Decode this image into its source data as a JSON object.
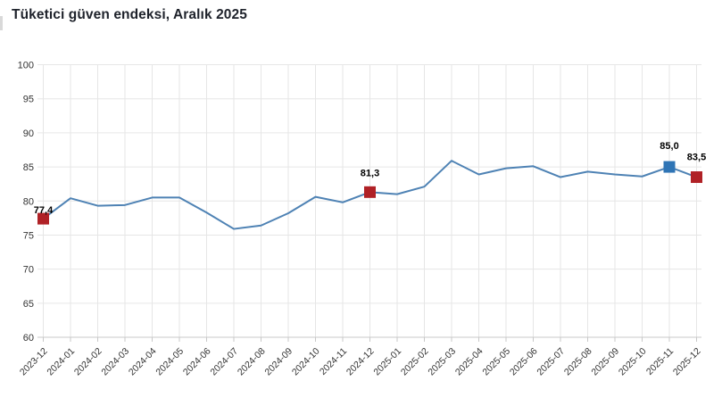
{
  "page": {
    "title": "Tüketici güven endeksi, Aralık 2025"
  },
  "colors": {
    "line": "#4e82b4",
    "marker_red": "#b02126",
    "marker_blue": "#2e74b5",
    "gridline": "#e6e6e6",
    "axis_line": "#c8c8c8",
    "tick_label": "#333333",
    "data_label": "#000000",
    "title_text": "#1e222b",
    "background": "#ffffff"
  },
  "chart_data": {
    "type": "line",
    "title": "Tüketici güven endeksi, Aralık 2025",
    "xlabel": "",
    "ylabel": "",
    "ylim": [
      60,
      100
    ],
    "y_ticks": [
      60,
      65,
      70,
      75,
      80,
      85,
      90,
      95,
      100
    ],
    "grid": true,
    "legend": "none",
    "categories": [
      "2023-12",
      "2024-01",
      "2024-02",
      "2024-03",
      "2024-04",
      "2024-05",
      "2024-06",
      "2024-07",
      "2024-08",
      "2024-09",
      "2024-10",
      "2024-11",
      "2024-12",
      "2025-01",
      "2025-02",
      "2025-03",
      "2025-04",
      "2025-05",
      "2025-06",
      "2025-07",
      "2025-08",
      "2025-09",
      "2025-10",
      "2025-11",
      "2025-12"
    ],
    "values": [
      77.4,
      80.4,
      79.3,
      79.4,
      80.5,
      80.5,
      78.3,
      75.9,
      76.4,
      78.2,
      80.6,
      79.8,
      81.3,
      81.0,
      82.1,
      85.9,
      83.9,
      84.8,
      85.1,
      83.5,
      84.3,
      83.9,
      83.6,
      85.0,
      83.5
    ],
    "highlight_points": [
      {
        "index": 0,
        "category": "2023-12",
        "value": 77.4,
        "label": "77,4",
        "color": "#b02126",
        "shape": "square",
        "label_offset_y": 6
      },
      {
        "index": 12,
        "category": "2024-12",
        "value": 81.3,
        "label": "81,3",
        "color": "#b02126",
        "shape": "square",
        "label_offset_y": 18
      },
      {
        "index": 23,
        "category": "2025-11",
        "value": 85.0,
        "label": "85,0",
        "color": "#2e74b5",
        "shape": "square",
        "label_offset_y": 20
      },
      {
        "index": 24,
        "category": "2025-12",
        "value": 83.5,
        "label": "83,5",
        "color": "#b02126",
        "shape": "square",
        "label_offset_y": 19
      }
    ]
  }
}
